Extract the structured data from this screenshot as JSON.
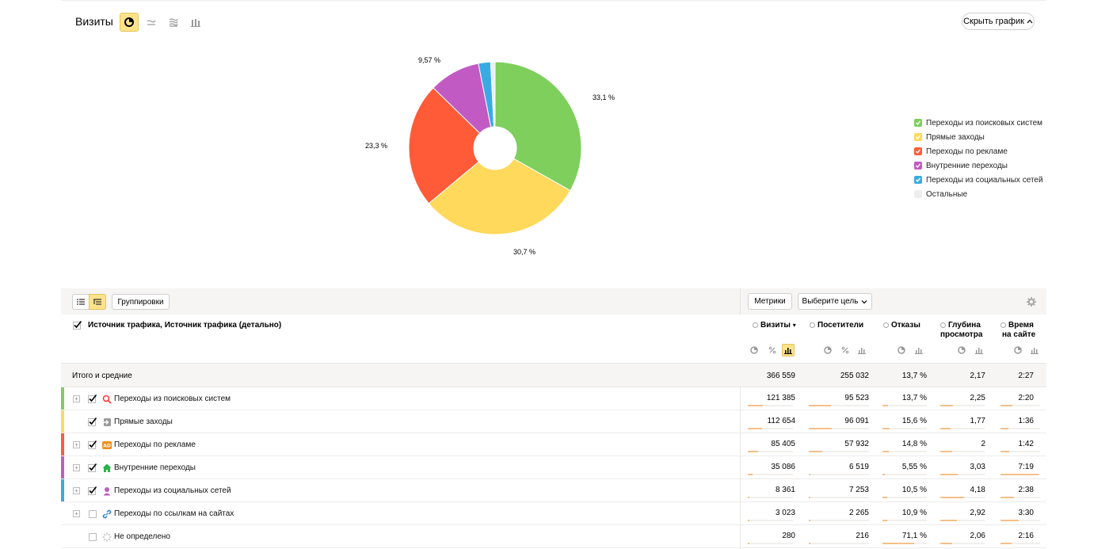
{
  "chart_header": {
    "title": "Визиты",
    "hide_button": "Скрыть график"
  },
  "chart_data": {
    "type": "pie",
    "labels": [
      "Переходы из поисковых систем",
      "Прямые заходы",
      "Переходы по рекламе",
      "Внутренние переходы",
      "Переходы из социальных сетей",
      "Остальные"
    ],
    "values": [
      33.1,
      30.7,
      23.3,
      9.57,
      2.28,
      0.82
    ],
    "value_labels": [
      "33,1 %",
      "30,7 %",
      "23,3 %",
      "9,57 %",
      "",
      ""
    ],
    "colors": [
      "#7ecf5c",
      "#ffd95c",
      "#ff5b38",
      "#c15bc3",
      "#3aabe2",
      "#e9eef2"
    ],
    "legend": [
      {
        "label": "Переходы из поисковых систем",
        "color": "#7ecf5c"
      },
      {
        "label": "Прямые заходы",
        "color": "#ffd95c"
      },
      {
        "label": "Переходы по рекламе",
        "color": "#ff5b38"
      },
      {
        "label": "Внутренние переходы",
        "color": "#c15bc3"
      },
      {
        "label": "Переходы из социальных сетей",
        "color": "#3aabe2"
      },
      {
        "label": "Остальные",
        "color": "#eeeeee"
      }
    ],
    "legend_position": "right"
  },
  "toolbar": {
    "groupings": "Группировки",
    "metrics": "Метрики",
    "choose_goal": "Выберите цель"
  },
  "table": {
    "dimension_title": "Источник трафика, Источник трафика (детально)",
    "columns": [
      {
        "label": "Визиты",
        "sort": "▾"
      },
      {
        "label": "Посетители"
      },
      {
        "label": "Отказы"
      },
      {
        "label1": "Глубина",
        "label2": "просмотра"
      },
      {
        "label1": "Время",
        "label2": "на сайте"
      }
    ],
    "totals": {
      "label": "Итого и средние",
      "values": [
        "366 559",
        "255 032",
        "13,7 %",
        "2,17",
        "2:27"
      ]
    },
    "rows": [
      {
        "label": "Переходы из поисковых систем",
        "color": "#7ecf5c",
        "icon": "search-icon",
        "expandable": true,
        "checked": true,
        "values": [
          "121 385",
          "95 523",
          "13,7 %",
          "2,25",
          "2:20"
        ],
        "share": [
          0.33,
          0.37,
          0.13,
          0.29,
          0.3
        ]
      },
      {
        "label": "Прямые заходы",
        "color": "#ffd95c",
        "icon": "direct-entry-icon",
        "expandable": false,
        "checked": true,
        "values": [
          "112 654",
          "96 091",
          "15,6 %",
          "1,77",
          "1:36"
        ],
        "share": [
          0.31,
          0.38,
          0.16,
          0.23,
          0.2
        ]
      },
      {
        "label": "Переходы по рекламе",
        "color": "#ff5b38",
        "icon": "ad-icon",
        "expandable": true,
        "checked": true,
        "values": [
          "85 405",
          "57 932",
          "14,8 %",
          "2",
          "1:42"
        ],
        "share": [
          0.23,
          0.23,
          0.15,
          0.26,
          0.22
        ]
      },
      {
        "label": "Внутренние переходы",
        "color": "#c15bc3",
        "icon": "home-icon",
        "expandable": true,
        "checked": true,
        "values": [
          "35 086",
          "6 519",
          "5,55 %",
          "3,03",
          "7:19"
        ],
        "share": [
          0.1,
          0.03,
          0.06,
          0.39,
          0.95
        ]
      },
      {
        "label": "Переходы из социальных сетей",
        "color": "#3aabe2",
        "icon": "social-icon",
        "expandable": true,
        "checked": true,
        "values": [
          "8 361",
          "7 253",
          "10,5 %",
          "4,18",
          "2:38"
        ],
        "share": [
          0.02,
          0.03,
          0.1,
          0.54,
          0.34
        ]
      },
      {
        "label": "Переходы по ссылкам на сайтах",
        "color": "",
        "icon": "link-icon",
        "expandable": true,
        "checked": false,
        "values": [
          "3 023",
          "2 265",
          "10,9 %",
          "2,92",
          "3:30"
        ],
        "share": [
          0.01,
          0.01,
          0.11,
          0.38,
          0.45
        ]
      },
      {
        "label": "Не определено",
        "color": "",
        "icon": "loading-icon",
        "expandable": false,
        "checked": false,
        "values": [
          "280",
          "216",
          "71,1 %",
          "2,06",
          "2:16"
        ],
        "share": [
          0.001,
          0.001,
          0.71,
          0.27,
          0.29
        ]
      }
    ]
  }
}
